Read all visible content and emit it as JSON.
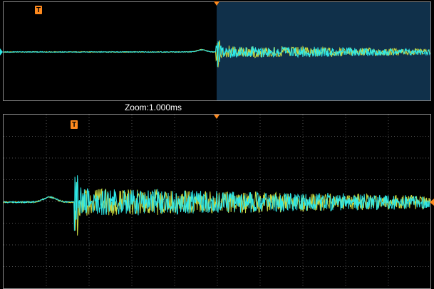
{
  "zoom_label": "Zoom:1.000ms",
  "trigger_marker": "T"
}
